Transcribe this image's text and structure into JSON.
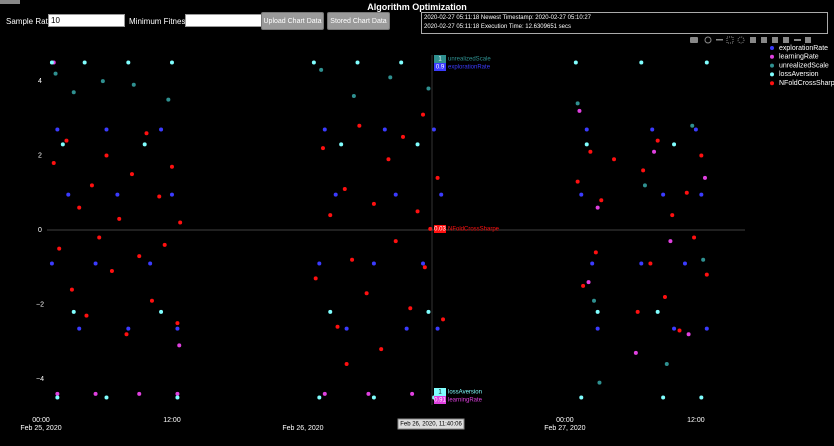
{
  "header": {
    "title": "Algorithm Optimization"
  },
  "controls": {
    "sample_rate_label": "Sample Rate:",
    "sample_rate_value": "10",
    "min_fitness_label": "Minimum Fitness:",
    "upload_button": "Upload Chart Data",
    "stored_button": "Stored Chart Data",
    "log": [
      "2020-02-27 05:11:18 Newest Timestamp: 2020-02-27 05:10:27",
      "2020-02-27 05:11:18 Execution Time: 12.6309651 secs"
    ]
  },
  "chart_data": {
    "type": "scatter",
    "xlim": [
      "2020-02-24 23:27",
      "2020-02-27 16:30"
    ],
    "xticks": [
      {
        "value": "2020-02-25 00:00",
        "label": "00:00",
        "date": "Feb 25, 2020"
      },
      {
        "value": "2020-02-25 12:00",
        "label": "12:00"
      },
      {
        "value": "2020-02-26 00:00",
        "date": "Feb 26, 2020"
      },
      {
        "value": "2020-02-27 00:00",
        "label": "00:00",
        "date": "Feb 27, 2020"
      },
      {
        "value": "2020-02-27 12:00",
        "label": "12:00"
      }
    ],
    "ylim": [
      -4.7,
      4.7
    ],
    "yticks": [
      {
        "value": -4,
        "label": "−4"
      },
      {
        "value": -2,
        "label": "−2"
      },
      0,
      2,
      4
    ],
    "zeroline": true,
    "hover": {
      "x_label": "Feb 26, 2020, 11:40:06",
      "labels": [
        {
          "value": "1",
          "name": "unrealizedScale"
        },
        {
          "value": "0.9",
          "name": "explorationRate"
        },
        {
          "value": "0.03",
          "name": "NFoldCrossSharpe"
        },
        {
          "value": "1",
          "name": "lossAversion"
        },
        {
          "value": "0.91",
          "name": "learningRate"
        }
      ]
    },
    "series": [
      {
        "name": "explorationRate",
        "color": "#3b3bff",
        "x": [
          "2020-02-25 01:30",
          "2020-02-25 06:00",
          "2020-02-25 11:00",
          "2020-02-26 02:00",
          "2020-02-26 07:30",
          "2020-02-26 12:00",
          "2020-02-27 02:00",
          "2020-02-27 08:00",
          "2020-02-27 12:00",
          "2020-02-25 02:30",
          "2020-02-25 07:00",
          "2020-02-25 12:00",
          "2020-02-26 03:00",
          "2020-02-26 08:30",
          "2020-02-26 12:40",
          "2020-02-27 01:30",
          "2020-02-27 09:00",
          "2020-02-27 12:30",
          "2020-02-25 01:00",
          "2020-02-25 05:00",
          "2020-02-25 10:00",
          "2020-02-26 01:30",
          "2020-02-26 06:30",
          "2020-02-26 11:00",
          "2020-02-27 02:30",
          "2020-02-27 07:00",
          "2020-02-27 11:00",
          "2020-02-25 03:30",
          "2020-02-25 08:00",
          "2020-02-25 12:30",
          "2020-02-26 04:00",
          "2020-02-26 09:30",
          "2020-02-26 12:20",
          "2020-02-27 03:00",
          "2020-02-27 10:00",
          "2020-02-27 13:00"
        ],
        "values": [
          2.7,
          2.7,
          2.7,
          2.7,
          2.7,
          2.7,
          2.7,
          2.7,
          2.7,
          0.95,
          0.95,
          0.95,
          0.95,
          0.95,
          0.95,
          0.95,
          0.95,
          0.95,
          -0.9,
          -0.9,
          -0.9,
          -0.9,
          -0.9,
          -0.9,
          -0.9,
          -0.9,
          -0.9,
          -2.65,
          -2.65,
          -2.65,
          -2.65,
          -2.65,
          -2.65,
          -2.65,
          -2.65,
          -2.65
        ]
      },
      {
        "name": "learningRate",
        "color": "#e040e0",
        "x": [
          "2020-02-25 01:30",
          "2020-02-25 05:00",
          "2020-02-25 09:00",
          "2020-02-25 12:30",
          "2020-02-26 02:00",
          "2020-02-26 06:00",
          "2020-02-26 10:00",
          "2020-02-26 12:30",
          "2020-02-27 01:20",
          "2020-02-27 02:10",
          "2020-02-27 03:00",
          "2020-02-27 06:30",
          "2020-02-27 08:10",
          "2020-02-27 09:40",
          "2020-02-27 11:20",
          "2020-02-27 12:50",
          "2020-02-25 12:40",
          "2020-02-25 01:10"
        ],
        "values": [
          -4.4,
          -4.4,
          -4.4,
          -4.4,
          -4.4,
          -4.4,
          -4.4,
          -4.4,
          3.2,
          -1.4,
          0.6,
          -3.3,
          2.1,
          -0.3,
          -2.8,
          1.4,
          -3.1,
          4.5
        ]
      },
      {
        "name": "unrealizedScale",
        "color": "#2f9090",
        "x": [
          "2020-02-25 01:20",
          "2020-02-25 03:00",
          "2020-02-25 05:40",
          "2020-02-25 08:30",
          "2020-02-25 11:40",
          "2020-02-26 01:40",
          "2020-02-26 04:40",
          "2020-02-26 08:00",
          "2020-02-26 11:30",
          "2020-02-27 01:10",
          "2020-02-27 02:40",
          "2020-02-27 07:20",
          "2020-02-27 09:20",
          "2020-02-27 11:40",
          "2020-02-27 12:40",
          "2020-02-27 03:10"
        ],
        "values": [
          4.2,
          3.7,
          4.0,
          3.9,
          3.5,
          4.3,
          3.6,
          4.1,
          3.8,
          3.4,
          -1.9,
          1.2,
          -3.6,
          2.8,
          -0.8,
          -4.1
        ]
      },
      {
        "name": "lossAversion",
        "color": "#80ffff",
        "x": [
          "2020-02-25 01:00",
          "2020-02-25 04:00",
          "2020-02-25 08:00",
          "2020-02-25 12:00",
          "2020-02-26 01:00",
          "2020-02-26 05:00",
          "2020-02-26 09:00",
          "2020-02-26 12:50",
          "2020-02-27 01:00",
          "2020-02-27 07:00",
          "2020-02-27 13:00",
          "2020-02-25 02:00",
          "2020-02-25 09:30",
          "2020-02-26 03:30",
          "2020-02-26 10:30",
          "2020-02-27 02:00",
          "2020-02-27 10:00",
          "2020-02-25 03:00",
          "2020-02-25 11:00",
          "2020-02-26 02:30",
          "2020-02-26 11:30",
          "2020-02-27 03:00",
          "2020-02-27 08:30",
          "2020-02-25 01:30",
          "2020-02-25 06:00",
          "2020-02-25 12:30",
          "2020-02-26 01:30",
          "2020-02-26 06:30",
          "2020-02-26 12:00",
          "2020-02-27 01:30",
          "2020-02-27 09:00",
          "2020-02-27 12:30"
        ],
        "values": [
          4.5,
          4.5,
          4.5,
          4.5,
          4.5,
          4.5,
          4.5,
          4.5,
          4.5,
          4.5,
          4.5,
          2.3,
          2.3,
          2.3,
          2.3,
          2.3,
          2.3,
          -2.2,
          -2.2,
          -2.2,
          -2.2,
          -2.2,
          -2.2,
          -4.5,
          -4.5,
          -4.5,
          -4.5,
          -4.5,
          -4.5,
          -4.5,
          -4.5,
          -4.5
        ]
      },
      {
        "name": "NFoldCrossSharpe",
        "color": "#ff1010",
        "x": [
          "2020-02-25 01:10",
          "2020-02-25 01:40",
          "2020-02-25 02:20",
          "2020-02-25 02:50",
          "2020-02-25 03:30",
          "2020-02-25 04:10",
          "2020-02-25 04:40",
          "2020-02-25 05:20",
          "2020-02-25 06:00",
          "2020-02-25 06:30",
          "2020-02-25 07:10",
          "2020-02-25 07:50",
          "2020-02-25 08:20",
          "2020-02-25 09:00",
          "2020-02-25 09:40",
          "2020-02-25 10:10",
          "2020-02-25 10:50",
          "2020-02-25 11:20",
          "2020-02-25 12:00",
          "2020-02-25 12:30",
          "2020-02-25 12:45",
          "2020-02-26 01:10",
          "2020-02-26 01:50",
          "2020-02-26 02:30",
          "2020-02-26 03:10",
          "2020-02-26 03:50",
          "2020-02-26 04:30",
          "2020-02-26 05:10",
          "2020-02-26 05:50",
          "2020-02-26 06:30",
          "2020-02-26 07:10",
          "2020-02-26 07:50",
          "2020-02-26 08:30",
          "2020-02-26 09:10",
          "2020-02-26 09:50",
          "2020-02-26 10:30",
          "2020-02-26 11:10",
          "2020-02-26 11:40",
          "2020-02-26 12:20",
          "2020-02-26 12:50",
          "2020-02-26 11:00",
          "2020-02-26 04:00",
          "2020-02-27 01:10",
          "2020-02-27 01:40",
          "2020-02-27 02:20",
          "2020-02-27 02:50",
          "2020-02-27 03:20",
          "2020-02-27 06:40",
          "2020-02-27 07:10",
          "2020-02-27 07:50",
          "2020-02-27 08:30",
          "2020-02-27 09:10",
          "2020-02-27 09:50",
          "2020-02-27 10:30",
          "2020-02-27 11:10",
          "2020-02-27 11:50",
          "2020-02-27 12:30",
          "2020-02-27 13:00",
          "2020-02-27 04:30"
        ],
        "values": [
          1.8,
          -0.5,
          2.4,
          -1.6,
          0.6,
          -2.3,
          1.2,
          -0.2,
          2.0,
          -1.1,
          0.3,
          -2.8,
          1.5,
          -0.7,
          2.6,
          -1.9,
          0.9,
          -0.4,
          1.7,
          -2.5,
          0.2,
          -1.3,
          2.2,
          0.4,
          -2.6,
          1.1,
          -0.8,
          2.8,
          -1.7,
          0.7,
          -3.2,
          1.9,
          -0.3,
          2.5,
          -2.1,
          0.5,
          -1.0,
          0.03,
          1.4,
          -2.4,
          3.1,
          -3.6,
          1.3,
          -1.5,
          2.1,
          -0.6,
          0.8,
          -2.2,
          1.6,
          -0.9,
          2.4,
          -1.8,
          0.4,
          -2.7,
          1.0,
          -0.2,
          2.0,
          -1.2,
          1.9
        ]
      }
    ]
  }
}
